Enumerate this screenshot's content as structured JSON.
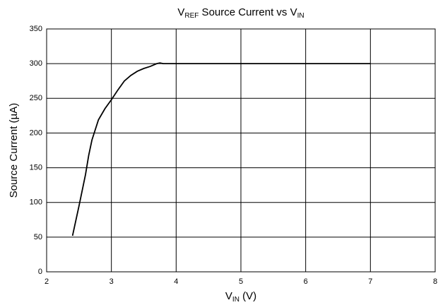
{
  "chart_data": {
    "type": "line",
    "title_parts": [
      "V",
      "REF",
      " Source Current vs V",
      "IN"
    ],
    "xlabel_parts": [
      "V",
      "IN",
      " (V)"
    ],
    "ylabel": "Source Current (µA)",
    "x": [
      2.4,
      2.5,
      2.6,
      2.65,
      2.7,
      2.8,
      2.9,
      3.0,
      3.1,
      3.2,
      3.3,
      3.4,
      3.5,
      3.6,
      3.7,
      3.75,
      3.8,
      4,
      5,
      6,
      7
    ],
    "series": [
      {
        "color": "#000000",
        "values": [
          52,
          95,
          140,
          168,
          190,
          219,
          235,
          248,
          262,
          275,
          283,
          289,
          293,
          296,
          300,
          301,
          300,
          300,
          300,
          300,
          300
        ]
      }
    ],
    "xlim": [
      2,
      8
    ],
    "xticks": [
      2,
      3,
      4,
      5,
      6,
      7,
      8
    ],
    "ylim": [
      0,
      350
    ],
    "yticks": [
      0,
      50,
      100,
      150,
      200,
      250,
      300,
      350
    ],
    "grid": true
  }
}
